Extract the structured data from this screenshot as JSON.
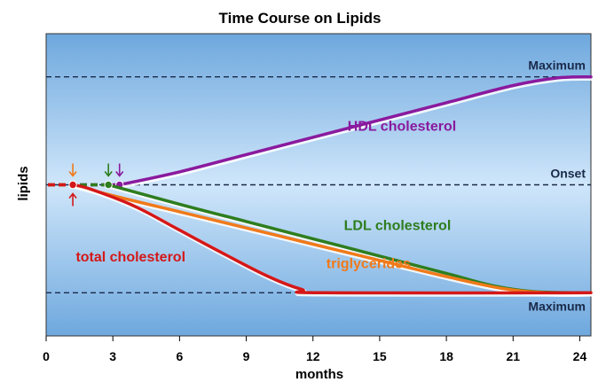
{
  "chart_data": {
    "type": "line",
    "title": "Time Course on Lipids",
    "xlabel": "months",
    "ylabel": "lipids",
    "x_ticks": [
      0,
      3,
      6,
      9,
      12,
      15,
      18,
      21,
      24
    ],
    "xlim": [
      0,
      24.5
    ],
    "ylim": [
      -1.4,
      1.4
    ],
    "grid": false,
    "reference_lines": [
      {
        "label": "Maximum",
        "y": 1.0,
        "label_position": "above-right"
      },
      {
        "label": "Onset",
        "y": 0.0,
        "label_position": "above-right"
      },
      {
        "label": "Maximum",
        "y": -1.0,
        "label_position": "below-right"
      }
    ],
    "series": [
      {
        "name": "HDL cholesterol",
        "color": "#8a1a9e",
        "onset_month": 3.3,
        "x": [
          0,
          3.3,
          6,
          9,
          12,
          15,
          18,
          21,
          23,
          24.5
        ],
        "y": [
          0.0,
          0.0,
          0.12,
          0.28,
          0.44,
          0.6,
          0.76,
          0.92,
          0.99,
          1.0
        ],
        "label_x": 16,
        "label_y": 0.5
      },
      {
        "name": "LDL cholesterol",
        "color": "#2e7d1e",
        "onset_month": 2.8,
        "x": [
          0,
          2.8,
          6,
          9,
          12,
          15,
          18,
          20,
          22,
          24.5
        ],
        "y": [
          0.0,
          0.0,
          -0.18,
          -0.34,
          -0.5,
          -0.66,
          -0.82,
          -0.93,
          -0.99,
          -1.0
        ],
        "label_x": 15.8,
        "label_y": -0.42
      },
      {
        "name": "triglycerides",
        "color": "#f07a1a",
        "onset_month": 1.2,
        "x": [
          0,
          1.2,
          3,
          6,
          9,
          12,
          15,
          18,
          20.5,
          22.5,
          24.5
        ],
        "y": [
          0.0,
          0.0,
          -0.1,
          -0.25,
          -0.4,
          -0.55,
          -0.7,
          -0.85,
          -0.96,
          -1.0,
          -1.0
        ],
        "label_x": 14.5,
        "label_y": -0.77
      },
      {
        "name": "total cholesterol",
        "color": "#d41818",
        "onset_month": 1.2,
        "x": [
          0,
          1.2,
          2,
          4,
          6,
          8,
          10,
          11.5,
          12.5,
          24.5
        ],
        "y": [
          0.0,
          0.0,
          -0.04,
          -0.2,
          -0.42,
          -0.64,
          -0.85,
          -0.97,
          -1.0,
          -1.0
        ],
        "label_x": 3.8,
        "label_y": -0.71
      }
    ]
  }
}
